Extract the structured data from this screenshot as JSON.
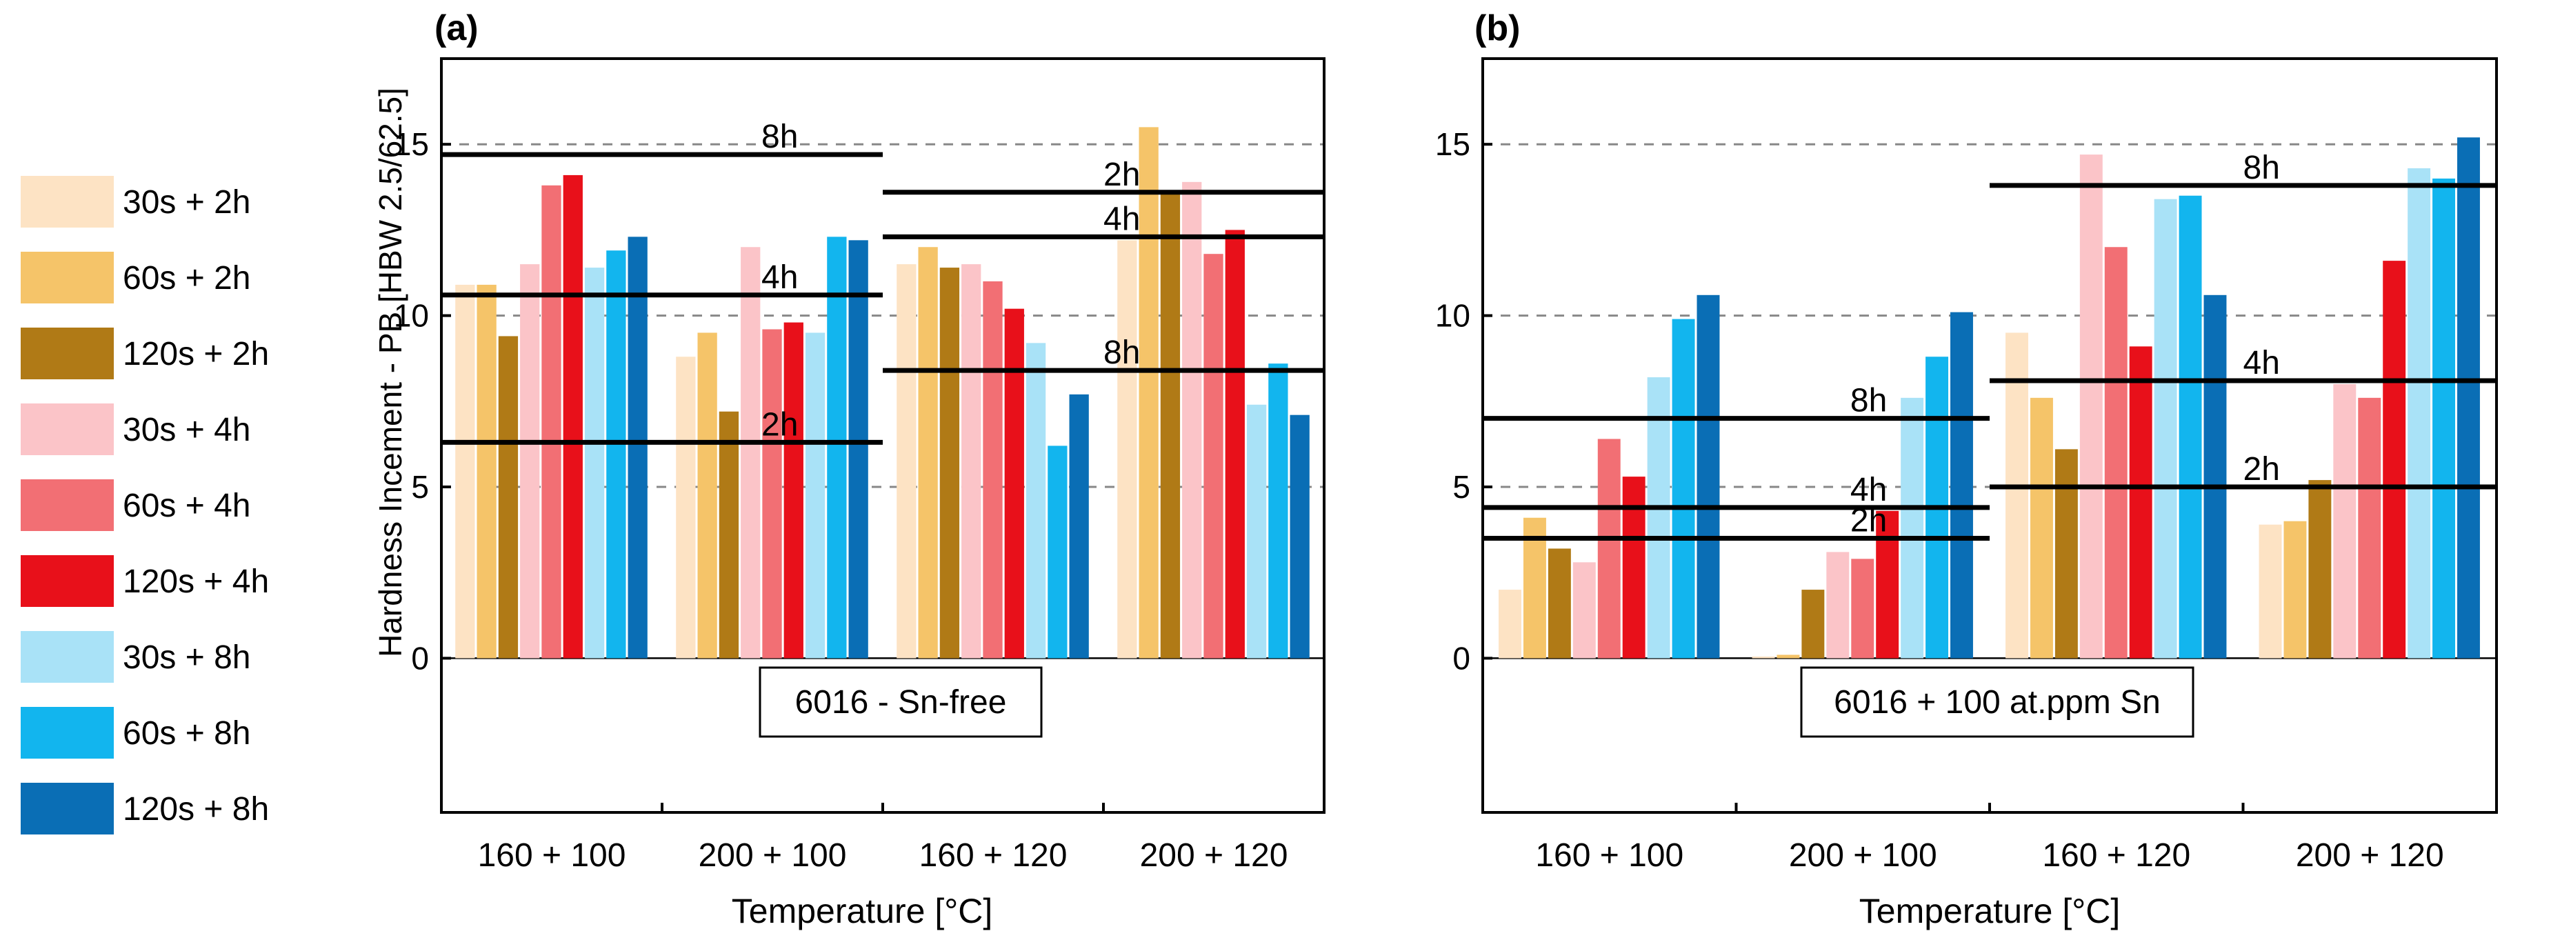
{
  "chart_data": [
    {
      "type": "bar",
      "panel_label": "(a)",
      "title": "",
      "xlabel": "Temperature [°C]",
      "ylabel": "Hardness Incement - PB [HBW 2.5/62.5]",
      "ylim": [
        -4.5,
        17.5
      ],
      "yticks": [
        0,
        5,
        10,
        15
      ],
      "categories": [
        "160 + 100",
        "200 + 100",
        "160 + 120",
        "200 + 120"
      ],
      "series": [
        {
          "name": "30s + 2h",
          "values": [
            10.9,
            8.8,
            11.5,
            12.2
          ]
        },
        {
          "name": "60s + 2h",
          "values": [
            10.9,
            9.5,
            12.0,
            15.5
          ]
        },
        {
          "name": "120s + 2h",
          "values": [
            9.4,
            7.2,
            11.4,
            13.6
          ]
        },
        {
          "name": "30s + 4h",
          "values": [
            11.5,
            12.0,
            11.5,
            13.9
          ]
        },
        {
          "name": "60s + 4h",
          "values": [
            13.8,
            9.6,
            11.0,
            11.8
          ]
        },
        {
          "name": "120s + 4h",
          "values": [
            14.1,
            9.8,
            10.2,
            12.5
          ]
        },
        {
          "name": "30s + 8h",
          "values": [
            11.4,
            9.5,
            9.2,
            7.4
          ]
        },
        {
          "name": "60s + 8h",
          "values": [
            11.9,
            12.3,
            6.2,
            8.6
          ]
        },
        {
          "name": "120s + 8h",
          "values": [
            12.3,
            12.2,
            7.7,
            7.1
          ]
        }
      ],
      "reference_lines": [
        {
          "label": "8h",
          "value": 14.7,
          "from_category": 0,
          "to_category": 1
        },
        {
          "label": "4h",
          "value": 10.6,
          "from_category": 0,
          "to_category": 1
        },
        {
          "label": "2h",
          "value": 6.3,
          "from_category": 0,
          "to_category": 1
        },
        {
          "label": "2h",
          "value": 13.6,
          "from_category": 2,
          "to_category": 3
        },
        {
          "label": "4h",
          "value": 12.3,
          "from_category": 2,
          "to_category": 3
        },
        {
          "label": "8h",
          "value": 8.4,
          "from_category": 2,
          "to_category": 3
        }
      ],
      "grid_values": [
        5,
        10,
        15
      ],
      "annotation": "6016 - Sn-free"
    },
    {
      "type": "bar",
      "panel_label": "(b)",
      "title": "",
      "xlabel": "Temperature [°C]",
      "ylabel": "",
      "ylim": [
        -4.5,
        17.5
      ],
      "yticks": [
        0,
        5,
        10,
        15
      ],
      "categories": [
        "160 + 100",
        "200 + 100",
        "160 + 120",
        "200 + 120"
      ],
      "series": [
        {
          "name": "30s + 2h",
          "values": [
            2.0,
            0.05,
            9.5,
            3.9
          ]
        },
        {
          "name": "60s + 2h",
          "values": [
            4.1,
            0.1,
            7.6,
            4.0
          ]
        },
        {
          "name": "120s + 2h",
          "values": [
            3.2,
            2.0,
            6.1,
            5.2
          ]
        },
        {
          "name": "30s + 4h",
          "values": [
            2.8,
            3.1,
            14.7,
            8.0
          ]
        },
        {
          "name": "60s + 4h",
          "values": [
            6.4,
            2.9,
            12.0,
            7.6
          ]
        },
        {
          "name": "120s + 4h",
          "values": [
            5.3,
            4.3,
            9.1,
            11.6
          ]
        },
        {
          "name": "30s + 8h",
          "values": [
            8.2,
            7.6,
            13.4,
            14.3
          ]
        },
        {
          "name": "60s + 8h",
          "values": [
            9.9,
            8.8,
            13.5,
            14.0
          ]
        },
        {
          "name": "120s + 8h",
          "values": [
            10.6,
            10.1,
            10.6,
            15.2
          ]
        }
      ],
      "reference_lines": [
        {
          "label": "8h",
          "value": 7.0,
          "from_category": 0,
          "to_category": 1
        },
        {
          "label": "4h",
          "value": 4.4,
          "from_category": 0,
          "to_category": 1
        },
        {
          "label": "2h",
          "value": 3.5,
          "from_category": 0,
          "to_category": 1
        },
        {
          "label": "8h",
          "value": 13.8,
          "from_category": 2,
          "to_category": 3
        },
        {
          "label": "4h",
          "value": 8.1,
          "from_category": 2,
          "to_category": 3
        },
        {
          "label": "2h",
          "value": 5.0,
          "from_category": 2,
          "to_category": 3
        }
      ],
      "grid_values": [
        5,
        10,
        15
      ],
      "annotation": "6016 + 100 at.ppm Sn"
    }
  ],
  "legend": {
    "placement": "left",
    "items": [
      {
        "label": "30s + 2h",
        "color": "#fde3c4"
      },
      {
        "label": "60s + 2h",
        "color": "#f5c469"
      },
      {
        "label": "120s + 2h",
        "color": "#b07a16"
      },
      {
        "label": "30s + 4h",
        "color": "#fbc4c8"
      },
      {
        "label": "60s + 4h",
        "color": "#f26f74"
      },
      {
        "label": "120s + 4h",
        "color": "#e8101a"
      },
      {
        "label": "30s + 8h",
        "color": "#a9e2f7"
      },
      {
        "label": "60s + 8h",
        "color": "#12b5ee"
      },
      {
        "label": "120s + 8h",
        "color": "#0a6eb5"
      }
    ]
  }
}
